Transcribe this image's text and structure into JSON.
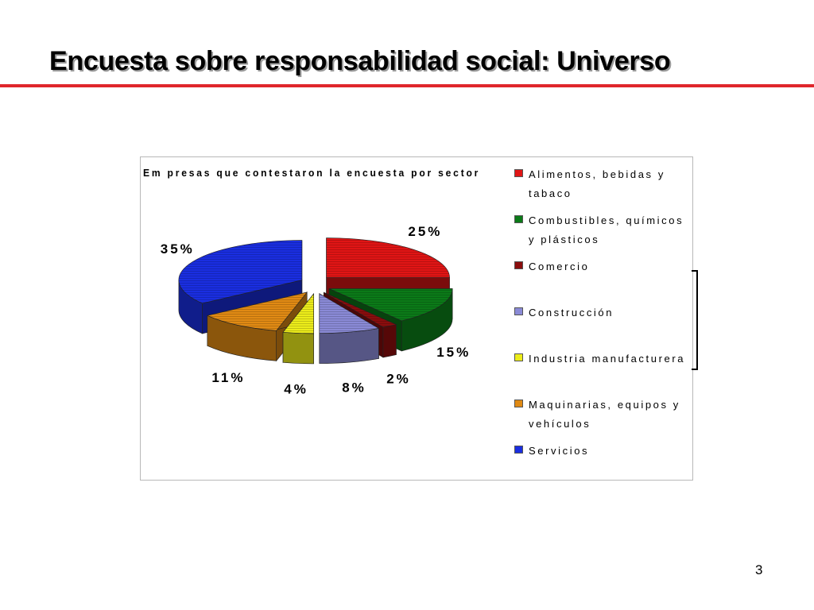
{
  "slide": {
    "title": "Encuesta sobre responsabilidad social: Universo",
    "page_number": "3"
  },
  "colors": {
    "title_rule": "#e0262b"
  },
  "chart_data": {
    "type": "pie",
    "title": "Em presas que contestaron la encuesta por sector",
    "style": "3d-exploded",
    "legend_position": "right",
    "slices": [
      {
        "label": "Alimentos, bebidas y tabaco",
        "value": 25,
        "value_label": "25%",
        "color": "#e01515"
      },
      {
        "label": "Combustibles, químicos y plásticos",
        "value": 15,
        "value_label": "15%",
        "color": "#0b7a18"
      },
      {
        "label": "Comercio",
        "value": 2,
        "value_label": "2%",
        "color": "#8a0d0d"
      },
      {
        "label": "Construcción",
        "value": 8,
        "value_label": "8%",
        "color": "#8a8ad6"
      },
      {
        "label": "Industria manufacturera",
        "value": 4,
        "value_label": "4%",
        "color": "#ecec1a"
      },
      {
        "label": "Maquinarias, equipos y vehículos",
        "value": 11,
        "value_label": "11%",
        "color": "#e08a14"
      },
      {
        "label": "Servicios",
        "value": 35,
        "value_label": "35%",
        "color": "#1a2ee0"
      }
    ]
  }
}
